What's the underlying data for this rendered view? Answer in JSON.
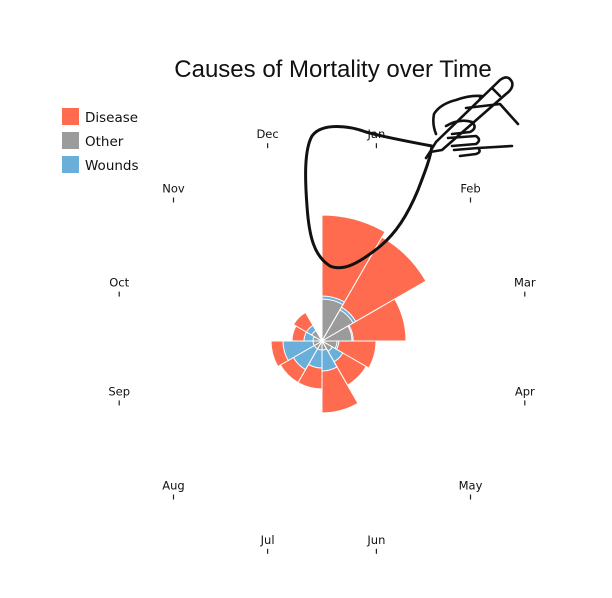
{
  "chart_data": {
    "type": "polar-area",
    "title": "Causes of Mortality over Time",
    "months": [
      "Jan",
      "Feb",
      "Mar",
      "Apr",
      "May",
      "Jun",
      "Jul",
      "Aug",
      "Sep",
      "Oct",
      "Nov",
      "Dec"
    ],
    "series": [
      {
        "name": "Disease",
        "color": "#ff6b4e",
        "values": [
          210,
          200,
          140,
          90,
          85,
          120,
          80,
          80,
          85,
          50,
          55,
          0
        ]
      },
      {
        "name": "Other",
        "color": "#9b9b9b",
        "values": [
          70,
          60,
          50,
          25,
          20,
          15,
          15,
          15,
          15,
          15,
          20,
          0
        ]
      },
      {
        "name": "Wounds",
        "color": "#6aafd9",
        "values": [
          75,
          65,
          52,
          28,
          40,
          50,
          45,
          55,
          65,
          30,
          30,
          0
        ]
      }
    ],
    "legend": {
      "position": "top-left"
    },
    "annotation": "hand-drawn-loop-around-jan"
  }
}
